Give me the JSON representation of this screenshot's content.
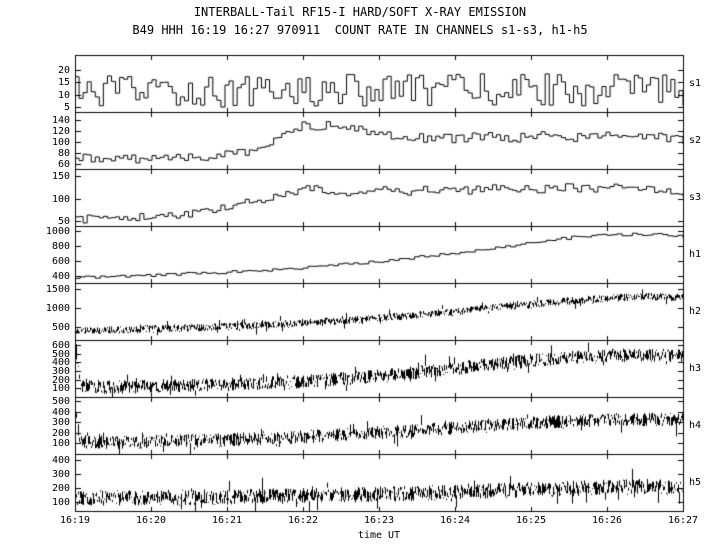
{
  "chart_data": {
    "type": "line",
    "title": "INTERBALL-Tail RF15-I HARD/SOFT X-RAY EMISSION",
    "subtitle": "B49 HHH 16:19 16:27 970911  COUNT RATE IN CHANNELS s1-s3, h1-h5",
    "xlabel": "time UT",
    "x_ticks": [
      "16:19",
      "16:20",
      "16:21",
      "16:22",
      "16:23",
      "16:24",
      "16:25",
      "16:26",
      "16:27"
    ],
    "x_range_minutes": [
      0,
      8
    ],
    "grid": false,
    "legend_position": "right",
    "panels": [
      {
        "label": "s1",
        "style": "step",
        "ylim": [
          3,
          26
        ],
        "yticks": [
          5,
          10,
          15,
          20
        ],
        "noise": 6.5,
        "steps": 150,
        "anchors": [
          [
            0,
            11
          ],
          [
            2,
            11.5
          ],
          [
            4,
            12
          ],
          [
            6,
            12
          ],
          [
            8,
            12
          ]
        ]
      },
      {
        "label": "s2",
        "style": "step",
        "ylim": [
          50,
          155
        ],
        "yticks": [
          60,
          80,
          100,
          120,
          140
        ],
        "noise": 8,
        "steps": 150,
        "anchors": [
          [
            0,
            70
          ],
          [
            1,
            69
          ],
          [
            1.5,
            71
          ],
          [
            2,
            76
          ],
          [
            2.3,
            85
          ],
          [
            2.6,
            100
          ],
          [
            2.8,
            118
          ],
          [
            3.0,
            133
          ],
          [
            3.2,
            128
          ],
          [
            3.4,
            133
          ],
          [
            3.6,
            130
          ],
          [
            3.8,
            122
          ],
          [
            4.0,
            116
          ],
          [
            4.3,
            110
          ],
          [
            4.6,
            107
          ],
          [
            5.0,
            106
          ],
          [
            5.4,
            111
          ],
          [
            5.8,
            107
          ],
          [
            6.2,
            112
          ],
          [
            6.6,
            108
          ],
          [
            7.0,
            112
          ],
          [
            7.4,
            108
          ],
          [
            7.8,
            108
          ],
          [
            8,
            102
          ]
        ]
      },
      {
        "label": "s3",
        "style": "step",
        "ylim": [
          40,
          165
        ],
        "yticks": [
          50,
          100,
          150
        ],
        "noise": 9,
        "steps": 150,
        "anchors": [
          [
            0,
            55
          ],
          [
            0.5,
            57
          ],
          [
            1,
            60
          ],
          [
            1.4,
            66
          ],
          [
            1.8,
            76
          ],
          [
            2.2,
            90
          ],
          [
            2.6,
            106
          ],
          [
            2.9,
            118
          ],
          [
            3.2,
            122
          ],
          [
            3.6,
            114
          ],
          [
            4.0,
            120
          ],
          [
            4.4,
            116
          ],
          [
            4.8,
            122
          ],
          [
            5.2,
            117
          ],
          [
            5.6,
            124
          ],
          [
            6.0,
            119
          ],
          [
            6.4,
            126
          ],
          [
            6.8,
            120
          ],
          [
            7.2,
            124
          ],
          [
            7.6,
            117
          ],
          [
            8,
            110
          ]
        ]
      },
      {
        "label": "h1",
        "style": "step",
        "ylim": [
          300,
          1060
        ],
        "yticks": [
          400,
          600,
          800,
          1000
        ],
        "noise": 18,
        "steps": 120,
        "anchors": [
          [
            0,
            375
          ],
          [
            0.5,
            385
          ],
          [
            1,
            405
          ],
          [
            1.5,
            425
          ],
          [
            2,
            445
          ],
          [
            2.5,
            470
          ],
          [
            3,
            505
          ],
          [
            3.5,
            545
          ],
          [
            4,
            590
          ],
          [
            4.5,
            645
          ],
          [
            5,
            705
          ],
          [
            5.5,
            765
          ],
          [
            6,
            835
          ],
          [
            6.3,
            880
          ],
          [
            6.6,
            915
          ],
          [
            7,
            935
          ],
          [
            7.4,
            950
          ],
          [
            7.7,
            945
          ],
          [
            8,
            915
          ]
        ]
      },
      {
        "label": "h2",
        "style": "band",
        "ylim": [
          150,
          1650
        ],
        "yticks": [
          500,
          1000,
          1500
        ],
        "noise": 100,
        "anchors": [
          [
            0,
            400
          ],
          [
            0.5,
            420
          ],
          [
            1,
            445
          ],
          [
            1.5,
            470
          ],
          [
            2,
            505
          ],
          [
            2.5,
            550
          ],
          [
            3,
            605
          ],
          [
            3.5,
            665
          ],
          [
            4,
            730
          ],
          [
            4.5,
            810
          ],
          [
            5,
            900
          ],
          [
            5.5,
            1000
          ],
          [
            6,
            1090
          ],
          [
            6.5,
            1180
          ],
          [
            7,
            1250
          ],
          [
            7.5,
            1290
          ],
          [
            8,
            1270
          ]
        ]
      },
      {
        "label": "h3",
        "style": "band",
        "ylim": [
          0,
          660
        ],
        "yticks": [
          100,
          200,
          300,
          400,
          500,
          600
        ],
        "noise": 80,
        "anchors": [
          [
            0,
            620
          ],
          [
            0.06,
            120
          ],
          [
            0.5,
            115
          ],
          [
            1,
            120
          ],
          [
            1.5,
            130
          ],
          [
            2,
            145
          ],
          [
            2.5,
            160
          ],
          [
            3,
            180
          ],
          [
            3.5,
            210
          ],
          [
            4,
            245
          ],
          [
            4.5,
            285
          ],
          [
            5,
            330
          ],
          [
            5.5,
            380
          ],
          [
            6,
            420
          ],
          [
            6.5,
            455
          ],
          [
            7,
            480
          ],
          [
            7.5,
            490
          ],
          [
            8,
            480
          ]
        ]
      },
      {
        "label": "h4",
        "style": "band",
        "ylim": [
          0,
          540
        ],
        "yticks": [
          100,
          200,
          300,
          400,
          500
        ],
        "noise": 65,
        "anchors": [
          [
            0,
            470
          ],
          [
            0.06,
            115
          ],
          [
            0.5,
            112
          ],
          [
            1,
            118
          ],
          [
            1.5,
            125
          ],
          [
            2,
            135
          ],
          [
            2.5,
            148
          ],
          [
            3,
            162
          ],
          [
            3.5,
            180
          ],
          [
            4,
            200
          ],
          [
            4.5,
            225
          ],
          [
            5,
            250
          ],
          [
            5.5,
            275
          ],
          [
            6,
            295
          ],
          [
            6.5,
            310
          ],
          [
            7,
            320
          ],
          [
            7.5,
            330
          ],
          [
            8,
            320
          ]
        ]
      },
      {
        "label": "h5",
        "style": "band",
        "ylim": [
          40,
          440
        ],
        "yticks": [
          100,
          200,
          300,
          400
        ],
        "noise": 55,
        "anchors": [
          [
            0,
            130
          ],
          [
            1,
            133
          ],
          [
            2,
            138
          ],
          [
            3,
            147
          ],
          [
            4,
            158
          ],
          [
            5,
            172
          ],
          [
            6,
            190
          ],
          [
            7,
            205
          ],
          [
            7.5,
            212
          ],
          [
            8,
            210
          ]
        ]
      }
    ]
  }
}
